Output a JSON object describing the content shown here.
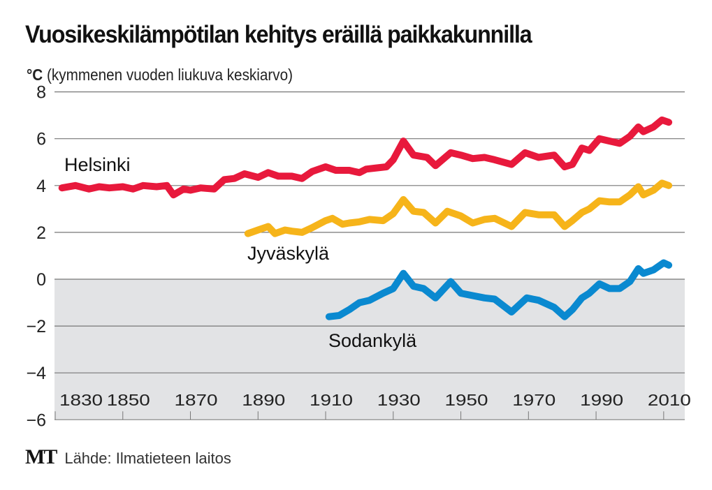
{
  "title": "Vuosikeskilämpötilan kehitys eräillä paikkakunnilla",
  "subtitle_unit": "°C",
  "subtitle_text": "(kymmenen vuoden liukuva keskiarvo)",
  "footer": {
    "logo": "MT",
    "source": "Lähde: Ilmatieteen laitos"
  },
  "colors": {
    "Helsinki": "#e8193c",
    "Jyväskylä": "#f6b41a",
    "Sodankylä": "#0a89d0",
    "below_zero_bg": "#e2e3e5",
    "grid": "#777777"
  },
  "chart_data": {
    "type": "line",
    "title": "Vuosikeskilämpötilan kehitys eräillä paikkakunnilla",
    "ylabel": "°C (kymmenen vuoden liukuva keskiarvo)",
    "xlabel": "",
    "xlim": [
      1828,
      2023
    ],
    "ylim": [
      -6,
      8
    ],
    "yticks": [
      8,
      6,
      4,
      2,
      0,
      -2,
      -4,
      -6
    ],
    "ytick_labels": [
      "8",
      "6",
      "4",
      "2",
      "0",
      "−2",
      "−4",
      "−6"
    ],
    "xticks": [
      1830,
      1850,
      1870,
      1890,
      1910,
      1930,
      1950,
      1970,
      1990,
      2010
    ],
    "xtick_labels": [
      "1830",
      "1850",
      "1870",
      "1890",
      "1910",
      "1930",
      "1950",
      "1970",
      "1990",
      "2010"
    ],
    "grid": true,
    "series": [
      {
        "name": "Helsinki",
        "x": [
          1832,
          1836,
          1840,
          1843,
          1846,
          1850,
          1853,
          1856,
          1860,
          1863,
          1865,
          1868,
          1870,
          1873,
          1877,
          1880,
          1883,
          1886,
          1890,
          1893,
          1896,
          1900,
          1903,
          1906,
          1910,
          1913,
          1917,
          1920,
          1922,
          1925,
          1928,
          1930,
          1933,
          1936,
          1940,
          1942.5,
          1947,
          1950,
          1953.5,
          1957,
          1960,
          1965,
          1969,
          1973,
          1977.6,
          1980.7,
          1983,
          1985.8,
          1988,
          1991,
          1994,
          1997,
          2000,
          2002.5,
          2004,
          2007,
          2009.5,
          2011.5
        ],
        "y": [
          3.9,
          4.0,
          3.85,
          3.95,
          3.9,
          3.95,
          3.85,
          4.0,
          3.95,
          4.0,
          3.6,
          3.85,
          3.8,
          3.9,
          3.85,
          4.25,
          4.3,
          4.5,
          4.35,
          4.55,
          4.4,
          4.4,
          4.3,
          4.6,
          4.8,
          4.65,
          4.65,
          4.55,
          4.7,
          4.75,
          4.8,
          5.1,
          5.9,
          5.3,
          5.2,
          4.85,
          5.4,
          5.3,
          5.15,
          5.2,
          5.1,
          4.9,
          5.4,
          5.2,
          5.3,
          4.8,
          4.9,
          5.6,
          5.5,
          6.0,
          5.9,
          5.8,
          6.1,
          6.5,
          6.3,
          6.5,
          6.8,
          6.7
        ]
      },
      {
        "name": "Jyväskylä",
        "x": [
          1887,
          1890,
          1893,
          1895,
          1898,
          1900,
          1903,
          1906,
          1910,
          1912,
          1915,
          1917,
          1920,
          1923,
          1927,
          1930,
          1933,
          1936,
          1939,
          1942.5,
          1946,
          1950,
          1953.5,
          1957,
          1960,
          1965,
          1969,
          1973,
          1977.6,
          1980.7,
          1983,
          1985.8,
          1988,
          1991,
          1994,
          1997,
          2000,
          2002.5,
          2004,
          2007,
          2009.5,
          2011.5
        ],
        "y": [
          1.95,
          2.1,
          2.25,
          1.95,
          2.1,
          2.05,
          2.0,
          2.2,
          2.5,
          2.6,
          2.35,
          2.4,
          2.45,
          2.55,
          2.5,
          2.8,
          3.4,
          2.9,
          2.85,
          2.4,
          2.9,
          2.7,
          2.4,
          2.55,
          2.6,
          2.25,
          2.85,
          2.75,
          2.75,
          2.25,
          2.5,
          2.85,
          3.0,
          3.35,
          3.3,
          3.3,
          3.6,
          3.95,
          3.6,
          3.8,
          4.1,
          4.0
        ]
      },
      {
        "name": "Sodankylä",
        "x": [
          1911,
          1914,
          1917,
          1920,
          1923,
          1927,
          1930,
          1933,
          1936,
          1939,
          1942.5,
          1947,
          1950,
          1953.5,
          1957,
          1960,
          1965,
          1969.5,
          1973,
          1977.6,
          1980.7,
          1983,
          1985.8,
          1988,
          1991,
          1994,
          1997,
          2000,
          2002.5,
          2004,
          2007,
          2010,
          2011.5
        ],
        "y": [
          -1.6,
          -1.55,
          -1.3,
          -1.0,
          -0.9,
          -0.6,
          -0.4,
          0.25,
          -0.3,
          -0.4,
          -0.8,
          -0.1,
          -0.6,
          -0.7,
          -0.8,
          -0.85,
          -1.4,
          -0.8,
          -0.9,
          -1.2,
          -1.6,
          -1.3,
          -0.8,
          -0.6,
          -0.2,
          -0.4,
          -0.4,
          -0.1,
          0.45,
          0.25,
          0.4,
          0.7,
          0.6
        ]
      }
    ],
    "annotations": [
      "Helsinki",
      "Jyväskylä",
      "Sodankylä"
    ]
  }
}
